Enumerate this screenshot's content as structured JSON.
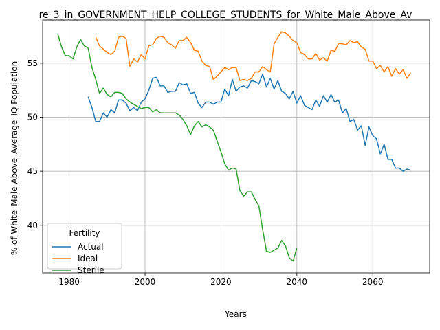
{
  "chart_data": {
    "type": "line",
    "title": "re_3_in_GOVERNMENT_HELP_COLLEGE_STUDENTS_for_White_Male_Above_Av",
    "xlabel": "Years",
    "ylabel": "% of White_Male Above_Average_IQ Population",
    "xlim": [
      1973,
      2075
    ],
    "ylim": [
      35.6,
      59.0
    ],
    "xticks": [
      1980,
      2000,
      2020,
      2040,
      2060
    ],
    "yticks": [
      40,
      45,
      50,
      55
    ],
    "grid": true,
    "legend": {
      "title": "Fertility",
      "position": "lower-left"
    },
    "series": [
      {
        "name": "Actual",
        "color": "#1f77b4",
        "x": [
          1985,
          1986,
          1987,
          1988,
          1989,
          1990,
          1991,
          1992,
          1993,
          1994,
          1995,
          1996,
          1997,
          1998,
          1999,
          2000,
          2001,
          2002,
          2003,
          2004,
          2005,
          2006,
          2007,
          2008,
          2009,
          2010,
          2011,
          2012,
          2013,
          2014,
          2015,
          2016,
          2017,
          2018,
          2019,
          2020,
          2021,
          2022,
          2023,
          2024,
          2025,
          2026,
          2027,
          2028,
          2029,
          2030,
          2031,
          2032,
          2033,
          2034,
          2035,
          2036,
          2037,
          2038,
          2039,
          2040,
          2041,
          2042,
          2043,
          2044,
          2045,
          2046,
          2047,
          2048,
          2049,
          2050,
          2051,
          2052,
          2053,
          2054,
          2055,
          2056,
          2057,
          2058,
          2059,
          2060,
          2061,
          2062,
          2063,
          2064,
          2065,
          2066,
          2067,
          2068,
          2069,
          2070
        ],
        "y": [
          51.9,
          50.9,
          49.6,
          49.6,
          50.4,
          50.0,
          50.7,
          50.4,
          51.6,
          51.6,
          51.3,
          50.6,
          50.9,
          50.6,
          51.4,
          51.7,
          52.5,
          53.6,
          53.7,
          52.9,
          52.9,
          52.3,
          52.4,
          52.4,
          53.2,
          53.0,
          53.1,
          52.2,
          52.3,
          51.3,
          50.9,
          51.4,
          51.4,
          51.2,
          51.4,
          51.4,
          52.6,
          52.0,
          53.5,
          52.4,
          52.8,
          52.9,
          52.7,
          53.4,
          53.3,
          53.1,
          54.0,
          52.8,
          53.6,
          52.6,
          53.4,
          52.4,
          52.2,
          51.7,
          52.4,
          51.3,
          52.0,
          51.1,
          50.9,
          50.7,
          51.6,
          51.0,
          52.0,
          51.4,
          52.1,
          51.4,
          51.6,
          50.4,
          50.8,
          49.6,
          49.8,
          48.8,
          49.2,
          47.4,
          49.1,
          48.3,
          48.0,
          46.6,
          47.5,
          46.1,
          46.1,
          45.3,
          45.3,
          45.0,
          45.2,
          45.1
        ]
      },
      {
        "name": "Ideal",
        "color": "#ff7f0e",
        "x": [
          1987,
          1988,
          1989,
          1990,
          1991,
          1992,
          1993,
          1994,
          1995,
          1996,
          1997,
          1998,
          1999,
          2000,
          2001,
          2002,
          2003,
          2004,
          2005,
          2006,
          2007,
          2008,
          2009,
          2010,
          2011,
          2012,
          2013,
          2014,
          2015,
          2016,
          2017,
          2018,
          2019,
          2020,
          2021,
          2022,
          2023,
          2024,
          2025,
          2026,
          2027,
          2028,
          2029,
          2030,
          2031,
          2032,
          2033,
          2034,
          2035,
          2036,
          2037,
          2038,
          2039,
          2040,
          2041,
          2042,
          2043,
          2044,
          2045,
          2046,
          2047,
          2048,
          2049,
          2050,
          2051,
          2052,
          2053,
          2054,
          2055,
          2056,
          2057,
          2058,
          2059,
          2060,
          2061,
          2062,
          2063,
          2064,
          2065,
          2066,
          2067,
          2068,
          2069,
          2070
        ],
        "y": [
          57.4,
          56.6,
          56.3,
          56.0,
          55.8,
          56.1,
          57.4,
          57.5,
          57.3,
          54.7,
          55.4,
          55.1,
          55.8,
          55.4,
          56.6,
          56.7,
          57.3,
          57.5,
          57.4,
          56.9,
          56.7,
          56.4,
          57.1,
          57.1,
          57.4,
          56.9,
          56.2,
          56.1,
          55.2,
          54.8,
          54.7,
          53.5,
          53.8,
          54.2,
          54.6,
          54.4,
          54.6,
          54.6,
          53.4,
          53.5,
          53.4,
          53.6,
          54.2,
          54.2,
          54.7,
          54.4,
          54.2,
          56.8,
          57.4,
          57.9,
          57.8,
          57.5,
          57.1,
          56.9,
          56.0,
          55.8,
          55.4,
          55.4,
          55.9,
          55.3,
          55.5,
          55.2,
          56.2,
          56.1,
          56.8,
          56.8,
          56.7,
          57.1,
          56.9,
          57.0,
          56.5,
          56.3,
          55.2,
          55.2,
          54.5,
          54.8,
          54.2,
          54.7,
          53.8,
          54.5,
          54.0,
          54.4,
          53.6,
          54.1
        ]
      },
      {
        "name": "Sterile",
        "color": "#2ca02c",
        "x": [
          1977,
          1978,
          1979,
          1980,
          1981,
          1982,
          1983,
          1984,
          1985,
          1986,
          1987,
          1988,
          1989,
          1990,
          1991,
          1992,
          1993,
          1994,
          1995,
          1996,
          1997,
          1998,
          1999,
          2000,
          2001,
          2002,
          2003,
          2004,
          2005,
          2006,
          2007,
          2008,
          2009,
          2010,
          2011,
          2012,
          2013,
          2014,
          2015,
          2016,
          2017,
          2018,
          2019,
          2020,
          2021,
          2022,
          2023,
          2024,
          2025,
          2026,
          2027,
          2028,
          2029,
          2030,
          2031,
          2032,
          2033,
          2034,
          2035,
          2036,
          2037,
          2038,
          2039,
          2040
        ],
        "y": [
          57.7,
          56.5,
          55.7,
          55.7,
          55.4,
          56.5,
          57.2,
          56.6,
          56.4,
          54.6,
          53.5,
          52.2,
          52.7,
          52.1,
          51.9,
          52.3,
          52.3,
          52.2,
          51.7,
          51.4,
          51.2,
          51.0,
          50.8,
          50.9,
          50.9,
          50.5,
          50.7,
          50.4,
          50.4,
          50.4,
          50.4,
          50.4,
          50.2,
          49.8,
          49.2,
          48.4,
          49.2,
          49.6,
          49.1,
          49.3,
          49.1,
          48.8,
          47.8,
          46.8,
          45.7,
          45.1,
          45.3,
          45.2,
          43.2,
          42.7,
          43.1,
          43.1,
          42.4,
          41.8,
          39.6,
          37.6,
          37.5,
          37.7,
          37.9,
          38.6,
          38.1,
          37.0,
          36.7,
          37.9
        ]
      }
    ]
  }
}
